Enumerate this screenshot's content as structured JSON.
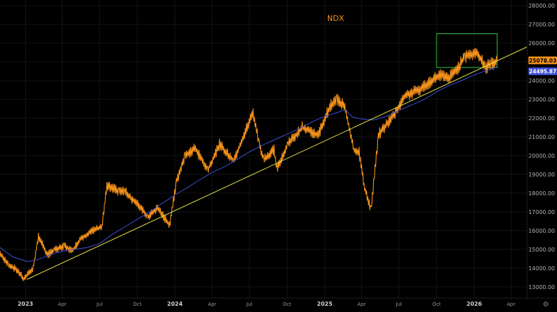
{
  "chart_data": {
    "type": "line",
    "title": "NDX",
    "xlabel": "",
    "ylabel": "",
    "ylim": [
      12400,
      28300
    ],
    "xlim": [
      "2022-10-31",
      "2026-05-10"
    ],
    "x_ticks": [
      {
        "date": "2023-01-01",
        "label": "2023",
        "bold": true
      },
      {
        "date": "2023-04-01",
        "label": "Apr",
        "bold": false
      },
      {
        "date": "2023-07-01",
        "label": "Jul",
        "bold": false
      },
      {
        "date": "2023-10-01",
        "label": "Oct",
        "bold": false
      },
      {
        "date": "2024-01-01",
        "label": "2024",
        "bold": true
      },
      {
        "date": "2024-04-01",
        "label": "Apr",
        "bold": false
      },
      {
        "date": "2024-07-01",
        "label": "Jul",
        "bold": false
      },
      {
        "date": "2024-10-01",
        "label": "Oct",
        "bold": false
      },
      {
        "date": "2025-01-01",
        "label": "2025",
        "bold": true
      },
      {
        "date": "2025-04-01",
        "label": "Apr",
        "bold": false
      },
      {
        "date": "2025-07-01",
        "label": "Jul",
        "bold": false
      },
      {
        "date": "2025-10-01",
        "label": "Oct",
        "bold": false
      },
      {
        "date": "2026-01-01",
        "label": "2026",
        "bold": true
      },
      {
        "date": "2026-04-01",
        "label": "Apr",
        "bold": false
      }
    ],
    "y_ticks": [
      {
        "value": 13000,
        "label": "13000.00"
      },
      {
        "value": 14000,
        "label": "14000.00"
      },
      {
        "value": 15000,
        "label": "15000.00"
      },
      {
        "value": 16000,
        "label": "16000.00"
      },
      {
        "value": 17000,
        "label": "17000.00"
      },
      {
        "value": 18000,
        "label": "18000.00"
      },
      {
        "value": 19000,
        "label": "19000.00"
      },
      {
        "value": 20000,
        "label": "20000.00"
      },
      {
        "value": 21000,
        "label": "21000.00"
      },
      {
        "value": 22000,
        "label": "22000.00"
      },
      {
        "value": 23000,
        "label": "23000.00"
      },
      {
        "value": 24000,
        "label": "24000.00"
      },
      {
        "value": 26000,
        "label": "26000.00"
      },
      {
        "value": 27000,
        "label": "27000.00"
      },
      {
        "value": 28000,
        "label": "28000.00"
      }
    ],
    "series": [
      {
        "name": "",
        "style": "price",
        "color": "#f7931a",
        "x": [
          "2022-10-31",
          "2022-11-20",
          "2022-12-12",
          "2022-12-28",
          "2023-01-20",
          "2023-02-02",
          "2023-02-24",
          "2023-03-13",
          "2023-04-06",
          "2023-04-25",
          "2023-05-17",
          "2023-06-15",
          "2023-07-07",
          "2023-07-19",
          "2023-08-18",
          "2023-09-01",
          "2023-09-26",
          "2023-10-12",
          "2023-10-26",
          "2023-11-20",
          "2023-12-19",
          "2024-01-05",
          "2024-01-26",
          "2024-02-20",
          "2024-03-21",
          "2024-04-19",
          "2024-05-23",
          "2024-07-10",
          "2024-07-25",
          "2024-08-05",
          "2024-08-30",
          "2024-09-06",
          "2024-10-03",
          "2024-11-07",
          "2024-12-16",
          "2025-01-13",
          "2025-01-31",
          "2025-02-19",
          "2025-03-13",
          "2025-03-26",
          "2025-04-07",
          "2025-04-24",
          "2025-05-12",
          "2025-06-20",
          "2025-07-16",
          "2025-08-20",
          "2025-09-18",
          "2025-10-10",
          "2025-10-29",
          "2025-11-20",
          "2025-12-10",
          "2026-01-08",
          "2026-01-28",
          "2026-02-12",
          "2026-02-26"
        ],
        "values": [
          14800,
          14200,
          13900,
          13400,
          14000,
          15700,
          14700,
          15000,
          15200,
          14900,
          15600,
          16000,
          16200,
          18400,
          18100,
          18100,
          17500,
          17200,
          16700,
          17200,
          16300,
          18600,
          20000,
          20400,
          19200,
          20600,
          19700,
          22300,
          20600,
          19800,
          20300,
          19300,
          20600,
          21500,
          21100,
          22600,
          23000,
          22600,
          20300,
          20200,
          18400,
          17100,
          21100,
          22200,
          23200,
          23500,
          24000,
          24300,
          24100,
          24600,
          25300,
          25500,
          24700,
          24900,
          25000
        ]
      },
      {
        "name": "",
        "style": "moving_average",
        "color": "#3d4fd6",
        "x": [
          "2022-10-31",
          "2022-12-01",
          "2023-01-05",
          "2023-02-01",
          "2023-03-01",
          "2023-04-01",
          "2023-05-01",
          "2023-06-01",
          "2023-07-01",
          "2023-08-01",
          "2023-09-01",
          "2023-10-01",
          "2023-11-01",
          "2023-12-01",
          "2024-01-01",
          "2024-02-01",
          "2024-03-01",
          "2024-04-01",
          "2024-05-01",
          "2024-06-01",
          "2024-07-01",
          "2024-08-01",
          "2024-09-01",
          "2024-10-01",
          "2024-11-01",
          "2024-12-01",
          "2025-01-01",
          "2025-02-01",
          "2025-02-20",
          "2025-03-10",
          "2025-04-01",
          "2025-05-01",
          "2025-06-01",
          "2025-07-01",
          "2025-08-01",
          "2025-09-01",
          "2025-10-01",
          "2025-11-01",
          "2025-12-01",
          "2026-01-01",
          "2026-02-01",
          "2026-02-26"
        ],
        "values": [
          15100,
          14600,
          14350,
          14450,
          14700,
          14900,
          15000,
          15100,
          15300,
          15800,
          16200,
          16600,
          17000,
          17450,
          17900,
          18300,
          18700,
          19100,
          19400,
          19800,
          20200,
          20550,
          20850,
          21150,
          21450,
          21800,
          22100,
          22300,
          22450,
          22050,
          21950,
          21900,
          22100,
          22400,
          22700,
          23000,
          23400,
          23750,
          24000,
          24300,
          24550,
          24750
        ]
      },
      {
        "name": "",
        "style": "trendline",
        "color": "#e8e04a",
        "x": [
          "2023-01-05",
          "2026-05-10"
        ],
        "values": [
          13400,
          25800
        ]
      }
    ],
    "price_labels": [
      {
        "value": 25078.03,
        "label": "25078.03",
        "color": "#f7931a"
      },
      {
        "value": 24495.87,
        "label": "24495.87",
        "color": "#3d4fd6"
      }
    ],
    "range_box": {
      "x0": "2025-10-01",
      "x1": "2026-02-26",
      "y0": 24700,
      "y1": 26500,
      "color": "#3cc43c"
    },
    "grid": true,
    "legend": "none"
  },
  "ui": {
    "gear_glyph": "⚙"
  }
}
